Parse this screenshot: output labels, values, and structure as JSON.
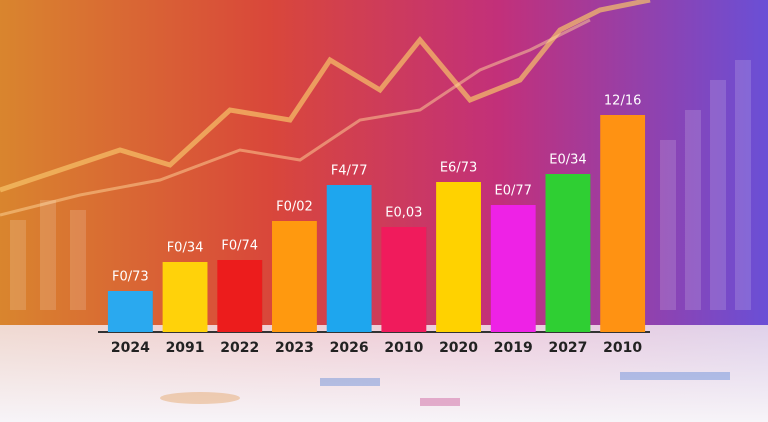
{
  "chart_data": {
    "type": "bar",
    "categories": [
      "2024",
      "2091",
      "2022",
      "2023",
      "2026",
      "2010",
      "2020",
      "2019",
      "2027",
      "2010"
    ],
    "values": [
      41,
      70,
      72,
      111,
      147,
      105,
      150,
      127,
      158,
      217
    ],
    "bar_labels": [
      "F0/73",
      "F0/34",
      "F0/74",
      "F0/02",
      "F4/77",
      "E0,03",
      "E6/73",
      "E0/77",
      "E0/34",
      "12/16"
    ],
    "colors": [
      "#2aa9ef",
      "#ffd20a",
      "#ec1c1c",
      "#ff990f",
      "#1ea6ee",
      "#f01b5c",
      "#ffd200",
      "#ee22e6",
      "#2fcf33",
      "#ff9212"
    ],
    "ylim": [
      0,
      230
    ]
  }
}
